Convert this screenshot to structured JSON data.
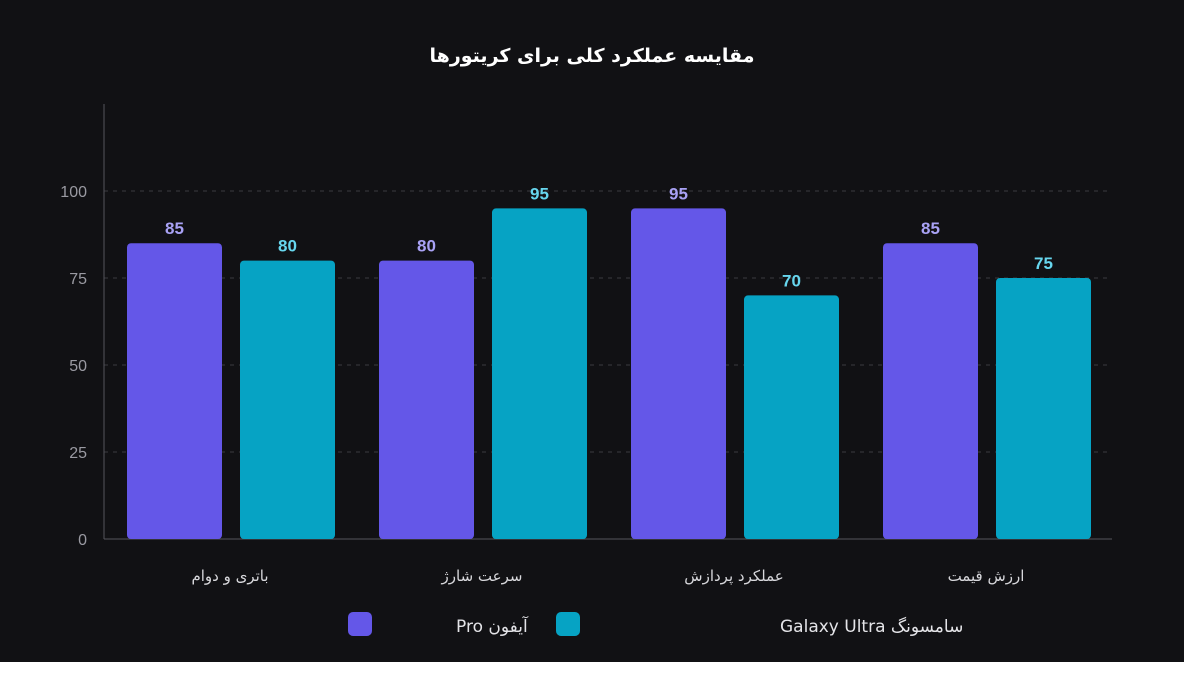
{
  "chart_data": {
    "type": "bar",
    "title": "مقایسه عملکرد کلی برای کریتورها",
    "categories": [
      "باتری و دوام",
      "سرعت شارژ",
      "عملکرد پردازش",
      "ارزش قیمت"
    ],
    "series": [
      {
        "name": "آیفون Pro",
        "values": [
          85,
          80,
          95,
          85
        ],
        "color": "#6457e8",
        "label_color": "#a9a2f5"
      },
      {
        "name": "سامسونگ Galaxy Ultra",
        "values": [
          80,
          95,
          70,
          75
        ],
        "color": "#06a3c4",
        "label_color": "#67d6ee"
      }
    ],
    "ylim": [
      0,
      125
    ],
    "yticks": [
      0,
      25,
      50,
      75,
      100
    ],
    "grid": true,
    "legend": "bottom"
  },
  "colors": {
    "background": "#111114",
    "axis": "#55555c",
    "grid": "#3a3a40"
  }
}
